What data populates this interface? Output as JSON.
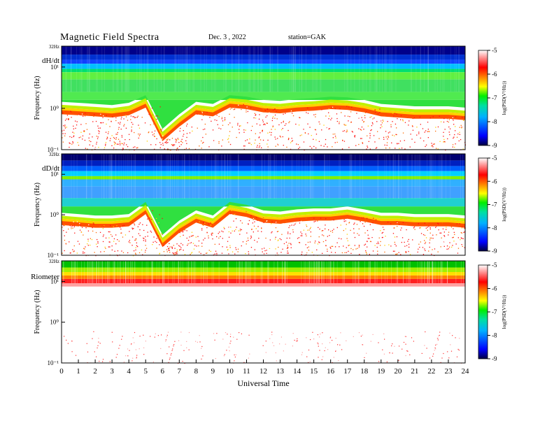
{
  "header": {
    "title": "Magnetic  Field  Spectra",
    "date": "Dec. 3  , 2022",
    "station": "station=GAK"
  },
  "chart_data": [
    {
      "type": "heatmap",
      "panel_label": "dH/dt",
      "top_tick": "32Hz",
      "ylabel": "Frequency  (Hz)",
      "y_scale": "log",
      "y_ticks": [
        "10¹",
        "10⁰",
        "10⁻¹"
      ],
      "xlim": [
        0,
        24
      ],
      "colorbar": {
        "label": "log(PSD(V²/Hz))",
        "ticks": [
          "-5",
          "-6",
          "-7",
          "-8",
          "-9"
        ],
        "range": [
          -9,
          -5
        ]
      },
      "noise_floor_hz": [
        0.9,
        0.85,
        0.8,
        0.75,
        0.85,
        1.3,
        0.2,
        0.45,
        0.9,
        0.8,
        1.3,
        1.2,
        1.0,
        0.95,
        1.05,
        1.1,
        1.2,
        1.15,
        1.0,
        0.8,
        0.75,
        0.7,
        0.7,
        0.7,
        0.65
      ]
    },
    {
      "type": "heatmap",
      "panel_label": "dD/dt",
      "top_tick": "32Hz",
      "ylabel": "Frequency  (Hz)",
      "y_scale": "log",
      "y_ticks": [
        "10¹",
        "10⁰",
        "10⁻¹"
      ],
      "xlim": [
        0,
        24
      ],
      "colorbar": {
        "label": "log(PSD(V²/Hz))",
        "ticks": [
          "-5",
          "-6",
          "-7",
          "-8",
          "-9"
        ],
        "range": [
          -9,
          -5
        ]
      },
      "noise_floor_hz": [
        0.7,
        0.65,
        0.6,
        0.6,
        0.65,
        1.3,
        0.2,
        0.45,
        0.8,
        0.6,
        1.3,
        1.1,
        0.8,
        0.75,
        0.85,
        0.9,
        0.9,
        1.0,
        0.85,
        0.7,
        0.7,
        0.65,
        0.65,
        0.65,
        0.6
      ]
    },
    {
      "type": "heatmap",
      "panel_label": "Riometer",
      "top_tick": "32Hz",
      "ylabel": "Frequency  (Hz)",
      "y_scale": "log",
      "y_ticks": [
        "10¹",
        "10⁰",
        "10⁻¹"
      ],
      "xlim": [
        0,
        24
      ],
      "colorbar": {
        "label": "log(PSD(V²/Hz))",
        "ticks": [
          "-5",
          "-6",
          "-7",
          "-8",
          "-9"
        ],
        "range": [
          -9,
          -5
        ]
      }
    }
  ],
  "x_axis": {
    "label": "Universal  Time",
    "ticks": [
      "0",
      "1",
      "2",
      "3",
      "4",
      "5",
      "6",
      "7",
      "8",
      "9",
      "10",
      "11",
      "12",
      "13",
      "14",
      "15",
      "16",
      "17",
      "18",
      "19",
      "20",
      "21",
      "22",
      "23",
      "24"
    ]
  }
}
